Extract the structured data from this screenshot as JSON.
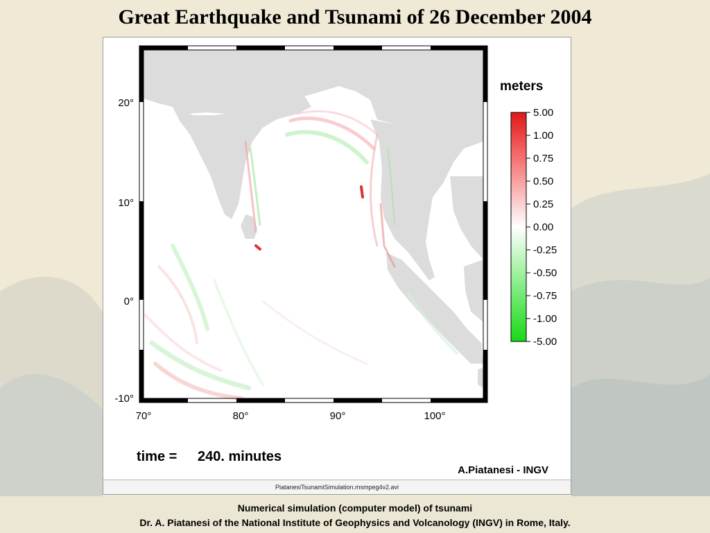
{
  "slide": {
    "title": "Great Earthquake and Tsunami of 26 December 2004",
    "caption_line1": "Numerical simulation (computer model) of tsunami",
    "caption_line2": "Dr. A. Piatanesi of the National Institute of Geophysics and Volcanology (INGV) in Rome, Italy."
  },
  "video": {
    "filename": "PiatanesiTsunamiSimulation.msmpeg4v2.avi"
  },
  "map": {
    "lat_labels": [
      "20°",
      "10°",
      "0°",
      "-10°"
    ],
    "lon_labels": [
      "70°",
      "80°",
      "90°",
      "100°"
    ],
    "time_prefix": "time =",
    "time_value": "240. minutes",
    "credit": "A.Piatanesi - INGV",
    "colors": {
      "land": "#dcdcdc",
      "ocean": "#ffffff",
      "positive": "#e82020",
      "negative": "#20d820"
    }
  },
  "legend": {
    "unit": "meters",
    "ticks": [
      "5.00",
      "1.00",
      "0.75",
      "0.50",
      "0.25",
      "0.00",
      "-0.25",
      "-0.50",
      "-0.75",
      "-1.00",
      "-5.00"
    ]
  }
}
